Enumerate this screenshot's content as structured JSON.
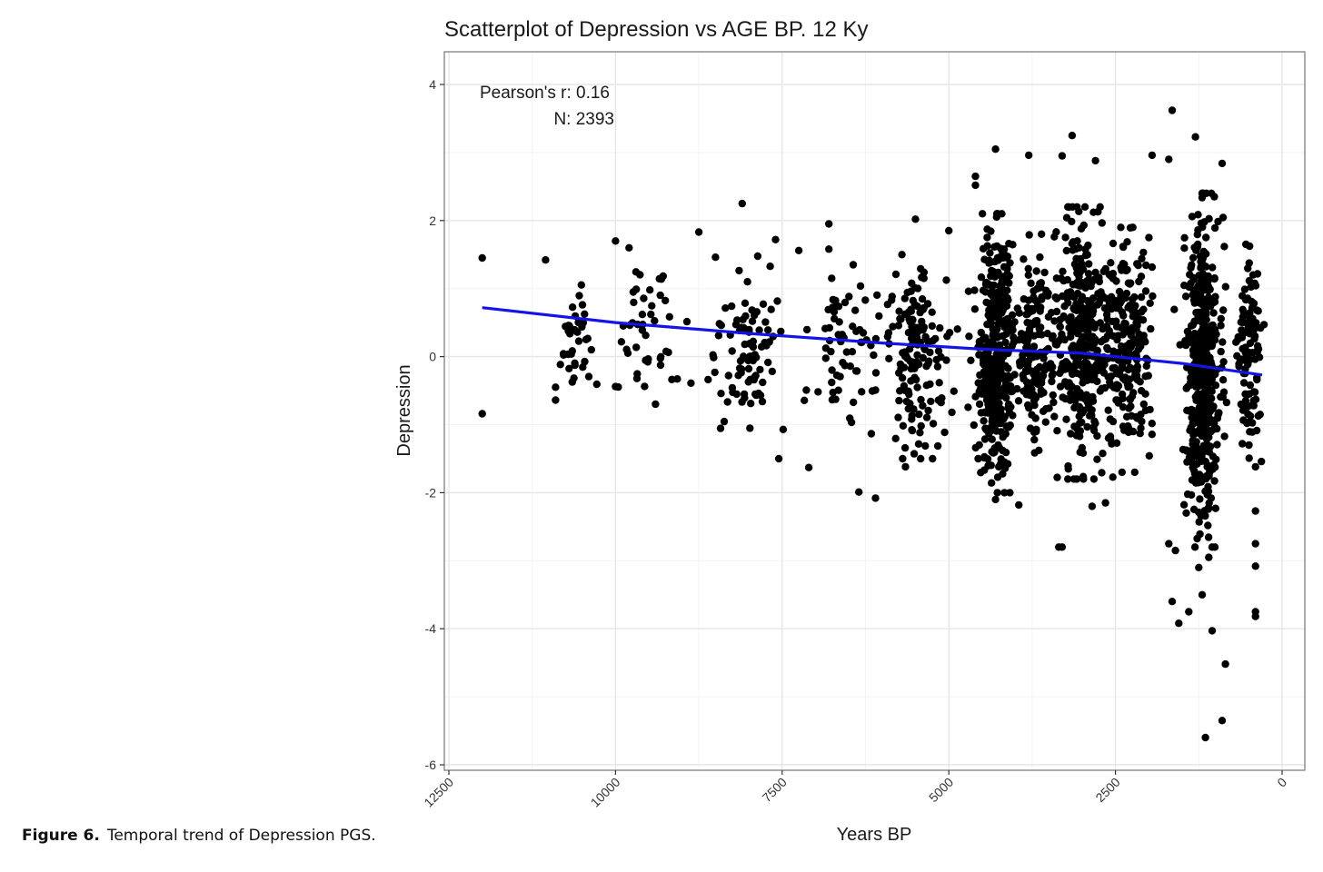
{
  "caption": {
    "label": "Figure 6.",
    "text": "Temporal trend of Depression PGS."
  },
  "colors": {
    "points": "#000000",
    "trend_line": "#1414e6",
    "grid_major": "#e6e6e6",
    "grid_minor": "#f3f3f3",
    "panel_border": "#7f7f7f"
  },
  "chart_data": {
    "type": "scatter",
    "title": "Scatterplot of Depression vs AGE BP. 12 Ky",
    "xlabel": "Years BP",
    "ylabel": "Depression",
    "xlim": [
      12500,
      0
    ],
    "ylim": [
      -6,
      4
    ],
    "x_reversed": true,
    "grid": true,
    "x_ticks": [
      12500,
      10000,
      7500,
      5000,
      2500,
      0
    ],
    "x_tick_labels": [
      "12500",
      "10000",
      "7500",
      "5000",
      "2500",
      "0"
    ],
    "y_ticks": [
      4,
      2,
      0,
      -2,
      -4,
      -6
    ],
    "y_tick_labels": [
      "4",
      "2",
      "0",
      "-2",
      "-4",
      "-6"
    ],
    "annotations": [
      "Pearson's r: 0.16",
      "N: 2393"
    ],
    "trend_line": {
      "x": [
        12000,
        10000,
        8000,
        6000,
        4500,
        3000,
        1500,
        300
      ],
      "y": [
        0.72,
        0.5,
        0.34,
        0.2,
        0.11,
        0.05,
        -0.1,
        -0.27
      ]
    },
    "point_groups": [
      {
        "x_center": 1200,
        "x_spread": 260,
        "y_min": -2.6,
        "y_max": 2.2,
        "count": 480
      },
      {
        "x_center": 4300,
        "x_spread": 280,
        "y_min": -1.8,
        "y_max": 1.9,
        "count": 380
      },
      {
        "x_center": 3000,
        "x_spread": 420,
        "y_min": -1.6,
        "y_max": 2.0,
        "count": 360
      },
      {
        "x_center": 2300,
        "x_spread": 360,
        "y_min": -1.5,
        "y_max": 1.7,
        "count": 210
      },
      {
        "x_center": 5500,
        "x_spread": 480,
        "y_min": -1.3,
        "y_max": 1.3,
        "count": 160
      },
      {
        "x_center": 3700,
        "x_spread": 300,
        "y_min": -1.3,
        "y_max": 1.6,
        "count": 150
      },
      {
        "x_center": 8000,
        "x_spread": 520,
        "y_min": -1.4,
        "y_max": 1.5,
        "count": 90
      },
      {
        "x_center": 500,
        "x_spread": 200,
        "y_min": -1.8,
        "y_max": 1.6,
        "count": 110
      },
      {
        "x_center": 6500,
        "x_spread": 480,
        "y_min": -1.0,
        "y_max": 1.3,
        "count": 60
      },
      {
        "x_center": 9500,
        "x_spread": 600,
        "y_min": -0.8,
        "y_max": 1.4,
        "count": 45
      },
      {
        "x_center": 10600,
        "x_spread": 280,
        "y_min": -0.6,
        "y_max": 1.3,
        "count": 35
      }
    ],
    "points": [
      {
        "x": 12000,
        "y": 1.45
      },
      {
        "x": 12000,
        "y": -0.84
      },
      {
        "x": 11050,
        "y": 1.42
      },
      {
        "x": 10900,
        "y": -0.45
      },
      {
        "x": 10900,
        "y": -0.64
      },
      {
        "x": 10000,
        "y": 1.7
      },
      {
        "x": 10000,
        "y": -0.44
      },
      {
        "x": 9400,
        "y": -0.7
      },
      {
        "x": 8750,
        "y": 1.83
      },
      {
        "x": 8500,
        "y": 1.46
      },
      {
        "x": 8100,
        "y": 2.25
      },
      {
        "x": 7600,
        "y": 1.72
      },
      {
        "x": 7250,
        "y": 1.56
      },
      {
        "x": 6800,
        "y": 1.95
      },
      {
        "x": 6800,
        "y": 1.58
      },
      {
        "x": 7550,
        "y": -1.5
      },
      {
        "x": 7100,
        "y": -1.63
      },
      {
        "x": 6350,
        "y": -1.99
      },
      {
        "x": 6100,
        "y": -2.08
      },
      {
        "x": 5650,
        "y": -1.62
      },
      {
        "x": 5500,
        "y": 2.02
      },
      {
        "x": 5000,
        "y": 1.85
      },
      {
        "x": 4600,
        "y": 2.65
      },
      {
        "x": 4600,
        "y": 2.52
      },
      {
        "x": 4300,
        "y": 3.05
      },
      {
        "x": 3800,
        "y": 2.96
      },
      {
        "x": 3150,
        "y": 3.25
      },
      {
        "x": 3300,
        "y": 2.95
      },
      {
        "x": 2800,
        "y": 2.88
      },
      {
        "x": 1650,
        "y": 3.62
      },
      {
        "x": 1300,
        "y": 3.23
      },
      {
        "x": 1700,
        "y": 2.9
      },
      {
        "x": 1950,
        "y": 2.96
      },
      {
        "x": 900,
        "y": 2.84
      },
      {
        "x": 3300,
        "y": -2.8
      },
      {
        "x": 3350,
        "y": -2.8
      },
      {
        "x": 2850,
        "y": -2.2
      },
      {
        "x": 4300,
        "y": -2.1
      },
      {
        "x": 3950,
        "y": -2.18
      },
      {
        "x": 2650,
        "y": -2.15
      },
      {
        "x": 1650,
        "y": -3.6
      },
      {
        "x": 1550,
        "y": -3.92
      },
      {
        "x": 1400,
        "y": -3.75
      },
      {
        "x": 1200,
        "y": -3.5
      },
      {
        "x": 1050,
        "y": -4.03
      },
      {
        "x": 850,
        "y": -4.52
      },
      {
        "x": 900,
        "y": -5.35
      },
      {
        "x": 1150,
        "y": -5.6
      },
      {
        "x": 1250,
        "y": -3.1
      },
      {
        "x": 1600,
        "y": -2.85
      },
      {
        "x": 1700,
        "y": -2.75
      },
      {
        "x": 1100,
        "y": -2.95
      },
      {
        "x": 400,
        "y": -3.75
      },
      {
        "x": 400,
        "y": -3.82
      },
      {
        "x": 400,
        "y": -3.08
      },
      {
        "x": 400,
        "y": -2.75
      },
      {
        "x": 400,
        "y": -2.27
      },
      {
        "x": 400,
        "y": -1.62
      }
    ]
  }
}
